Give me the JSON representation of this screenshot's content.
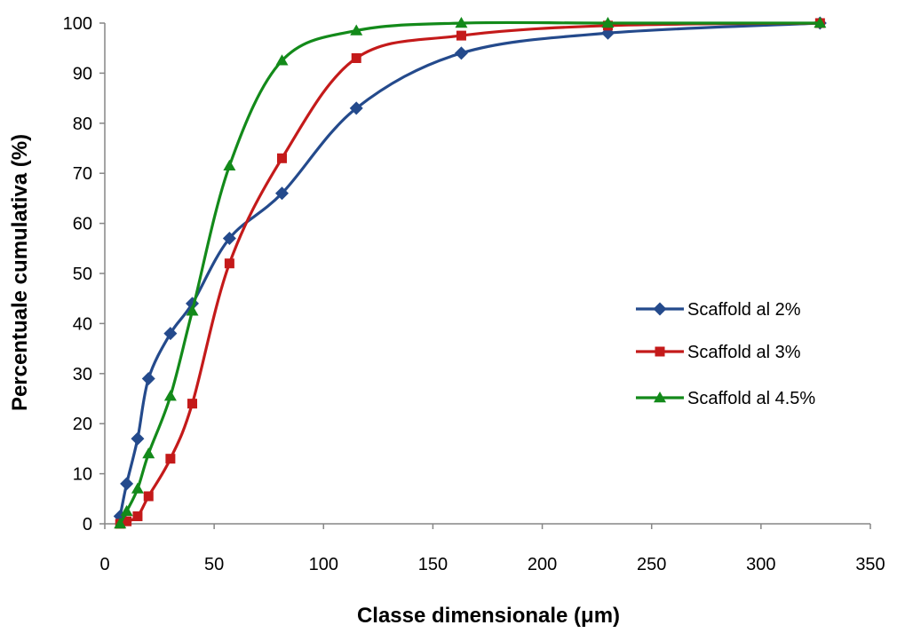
{
  "chart_data": {
    "type": "line",
    "title": "",
    "xlabel": "Classe dimensionale (μm)",
    "ylabel": "Percentuale cumulativa (%)",
    "xlim": [
      0,
      350
    ],
    "ylim": [
      0,
      100
    ],
    "xticks": [
      0,
      50,
      100,
      150,
      200,
      250,
      300,
      350
    ],
    "yticks": [
      0,
      10,
      20,
      30,
      40,
      50,
      60,
      70,
      80,
      90,
      100
    ],
    "xtick_labels": [
      "0",
      "50",
      "100",
      "150",
      "200",
      "250",
      "300",
      "350"
    ],
    "ytick_labels": [
      "0",
      "10",
      "20",
      "30",
      "40",
      "50",
      "60",
      "70",
      "80",
      "90",
      "100"
    ],
    "grid": false,
    "legend_position": "right",
    "series": [
      {
        "name": "Scaffold al 2%",
        "color": "#244a8c",
        "marker": "diamond",
        "x": [
          7,
          10,
          15,
          20,
          30,
          40,
          57,
          81,
          115,
          163,
          230,
          327
        ],
        "y": [
          1.5,
          8,
          17,
          29,
          38,
          44,
          57,
          66,
          83,
          94,
          98,
          100
        ]
      },
      {
        "name": "Scaffold al 3%",
        "color": "#c41a1a",
        "marker": "square",
        "x": [
          7,
          10,
          15,
          20,
          30,
          40,
          57,
          81,
          115,
          163,
          230,
          327
        ],
        "y": [
          0,
          0.5,
          1.5,
          5.5,
          13,
          24,
          52,
          73,
          93,
          97.5,
          99.5,
          100
        ]
      },
      {
        "name": "Scaffold al 4.5%",
        "color": "#138a1a",
        "marker": "triangle",
        "x": [
          7,
          10,
          15,
          20,
          30,
          40,
          57,
          81,
          115,
          163,
          230,
          327
        ],
        "y": [
          0,
          2.5,
          7,
          14,
          25.5,
          42.5,
          71.5,
          92.5,
          98.5,
          100,
          100,
          100
        ]
      }
    ]
  }
}
